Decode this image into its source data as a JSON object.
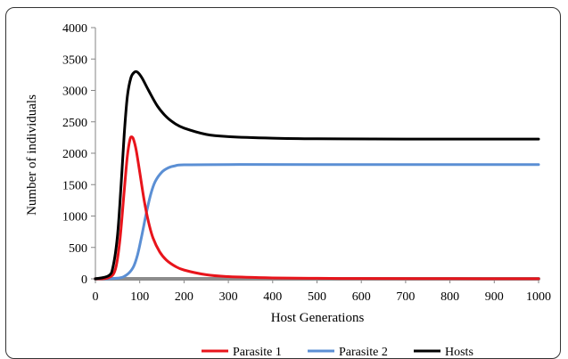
{
  "chart_data": {
    "type": "line",
    "title": "",
    "xlabel": "Host Generations",
    "ylabel": "Number of individuals",
    "xlim": [
      0,
      1000
    ],
    "ylim": [
      0,
      4000
    ],
    "xticks": [
      "0",
      "100",
      "200",
      "300",
      "400",
      "500",
      "600",
      "700",
      "800",
      "900",
      "1000"
    ],
    "yticks": [
      "0",
      "500",
      "1000",
      "1500",
      "2000",
      "2500",
      "3000",
      "3500",
      "4000"
    ],
    "grid": false,
    "legend": "bottom",
    "series": [
      {
        "name": "Parasite 1",
        "color": "#e8141b",
        "points": [
          [
            0,
            0
          ],
          [
            30,
            20
          ],
          [
            45,
            150
          ],
          [
            55,
            600
          ],
          [
            65,
            1400
          ],
          [
            72,
            1950
          ],
          [
            78,
            2220
          ],
          [
            82,
            2260
          ],
          [
            86,
            2220
          ],
          [
            92,
            2050
          ],
          [
            100,
            1700
          ],
          [
            110,
            1250
          ],
          [
            120,
            900
          ],
          [
            130,
            650
          ],
          [
            145,
            430
          ],
          [
            160,
            300
          ],
          [
            180,
            200
          ],
          [
            200,
            140
          ],
          [
            250,
            65
          ],
          [
            300,
            35
          ],
          [
            400,
            15
          ],
          [
            500,
            8
          ],
          [
            600,
            5
          ],
          [
            800,
            3
          ],
          [
            1000,
            2
          ]
        ]
      },
      {
        "name": "Parasite 2",
        "color": "#5b8fd4",
        "points": [
          [
            0,
            0
          ],
          [
            50,
            10
          ],
          [
            70,
            60
          ],
          [
            85,
            180
          ],
          [
            95,
            380
          ],
          [
            105,
            700
          ],
          [
            115,
            1050
          ],
          [
            125,
            1350
          ],
          [
            135,
            1550
          ],
          [
            150,
            1700
          ],
          [
            165,
            1770
          ],
          [
            180,
            1800
          ],
          [
            200,
            1815
          ],
          [
            300,
            1820
          ],
          [
            500,
            1820
          ],
          [
            1000,
            1820
          ]
        ]
      },
      {
        "name": "Hosts",
        "color": "#000000",
        "points": [
          [
            0,
            0
          ],
          [
            30,
            50
          ],
          [
            40,
            200
          ],
          [
            50,
            700
          ],
          [
            58,
            1500
          ],
          [
            65,
            2300
          ],
          [
            72,
            2900
          ],
          [
            80,
            3200
          ],
          [
            88,
            3290
          ],
          [
            95,
            3290
          ],
          [
            105,
            3200
          ],
          [
            120,
            3000
          ],
          [
            140,
            2750
          ],
          [
            160,
            2580
          ],
          [
            180,
            2470
          ],
          [
            200,
            2400
          ],
          [
            250,
            2300
          ],
          [
            300,
            2265
          ],
          [
            400,
            2240
          ],
          [
            500,
            2230
          ],
          [
            700,
            2225
          ],
          [
            1000,
            2225
          ]
        ]
      },
      {
        "name": "",
        "color": "#8c8c8c",
        "points": [
          [
            0,
            0
          ],
          [
            1000,
            0
          ]
        ]
      }
    ]
  }
}
